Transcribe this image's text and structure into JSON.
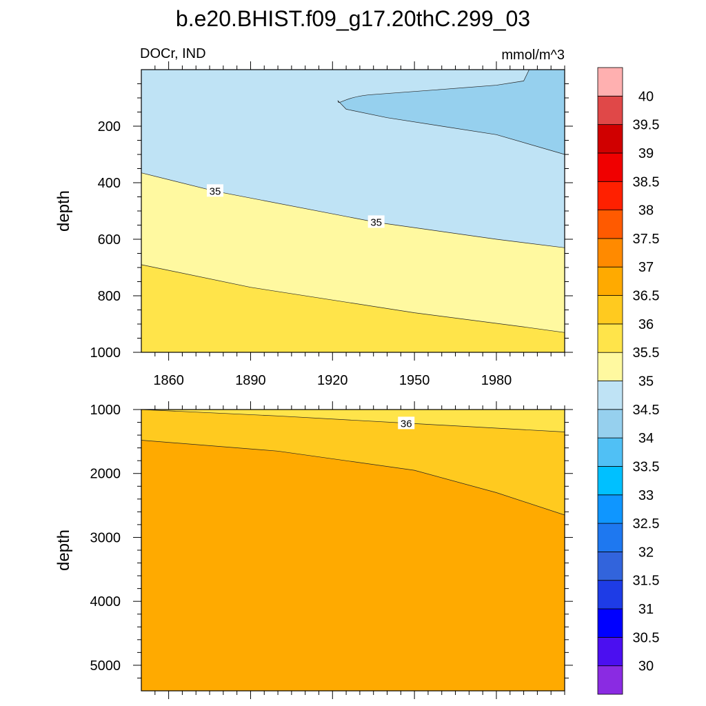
{
  "title": "b.e20.BHIST.f09_g17.20thC.299_03",
  "left_string": "DOCr, IND",
  "right_string": "mmol/m^3",
  "chart_data": [
    {
      "type": "contour",
      "panel": "top",
      "ylabel": "depth",
      "xlim": [
        1850,
        2005
      ],
      "ylim": [
        1000,
        0
      ],
      "xticks": [
        1860,
        1890,
        1920,
        1950,
        1980
      ],
      "yticks": [
        200,
        400,
        600,
        800,
        1000
      ],
      "contour_labels": [
        {
          "text": "35",
          "x": 1877,
          "y": 430
        },
        {
          "text": "35",
          "x": 1936,
          "y": 540
        }
      ],
      "boundaries": [
        {
          "level": 34.5,
          "x": [
            1922,
            1925,
            1940,
            1960,
            1980,
            2005
          ],
          "y": [
            110,
            140,
            170,
            200,
            230,
            300
          ]
        },
        {
          "level": 35,
          "x": [
            1850,
            1877,
            1936,
            1980,
            2005
          ],
          "y": [
            365,
            430,
            540,
            600,
            630
          ]
        },
        {
          "level": 35.5,
          "x": [
            1850,
            1890,
            1950,
            1990,
            2005
          ],
          "y": [
            690,
            770,
            860,
            910,
            930
          ]
        }
      ],
      "region_values": [
        "34-34.5",
        "34.5-35",
        "35-35.5",
        "35.5-36"
      ]
    },
    {
      "type": "contour",
      "panel": "bottom",
      "ylabel": "depth",
      "xlim": [
        1850,
        2005
      ],
      "ylim": [
        5400,
        1000
      ],
      "yticks": [
        1000,
        2000,
        3000,
        4000,
        5000
      ],
      "contour_labels": [
        {
          "text": "36",
          "x": 1947,
          "y": 1220
        }
      ],
      "boundaries": [
        {
          "level": 36,
          "x": [
            1850,
            1900,
            1950,
            2005
          ],
          "y": [
            1000,
            1100,
            1220,
            1350
          ]
        },
        {
          "level": 36.5,
          "x": [
            1850,
            1900,
            1950,
            1980,
            2005
          ],
          "y": [
            1480,
            1650,
            1950,
            2300,
            2650
          ]
        }
      ],
      "region_values": [
        "35.5-36",
        "36-36.5",
        "36.5-37"
      ]
    }
  ],
  "colorbar": {
    "labels": [
      "30",
      "30.5",
      "31",
      "31.5",
      "32",
      "32.5",
      "33",
      "33.5",
      "34",
      "34.5",
      "35",
      "35.5",
      "36",
      "36.5",
      "37",
      "37.5",
      "38",
      "38.5",
      "39",
      "39.5",
      "40"
    ],
    "colors": [
      "#8a2be2",
      "#4b0ff0",
      "#0000ff",
      "#1e3ce6",
      "#3264dc",
      "#1e78f0",
      "#0f96ff",
      "#00c0ff",
      "#50c0f5",
      "#96d0ee",
      "#bfe3f5",
      "#fff9a0",
      "#ffe44a",
      "#ffca1f",
      "#ffaa00",
      "#ff8a00",
      "#ff5a00",
      "#ff2000",
      "#f00000",
      "#d00000",
      "#e04848",
      "#ffb0b0"
    ]
  }
}
